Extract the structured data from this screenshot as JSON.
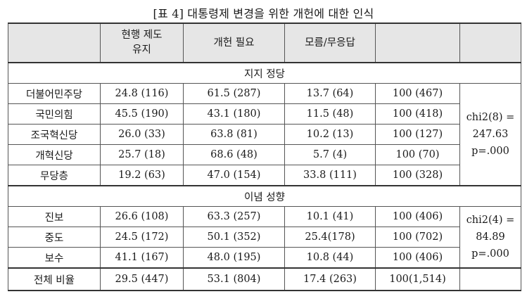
{
  "caption": "[표 4] 대통령제 변경을 위한 개헌에 대한 인식",
  "headers": [
    "",
    "현행 제도\n유지",
    "개헌 필요",
    "모름/무응답",
    "",
    ""
  ],
  "sections": [
    {
      "title": "지지 정당",
      "rows": [
        {
          "label": "더불어민주당",
          "cells": [
            "24.8 (116)",
            "61.5 (287)",
            "13.7 (64)",
            "100 (467)"
          ]
        },
        {
          "label": "국민의힘",
          "cells": [
            "45.5 (190)",
            "43.1 (180)",
            "11.5 (48)",
            "100 (418)"
          ]
        },
        {
          "label": "조국혁신당",
          "cells": [
            "26.0 (33)",
            "63.8 (81)",
            "10.2 (13)",
            "100 (127)"
          ]
        },
        {
          "label": "개혁신당",
          "cells": [
            "25.7 (18)",
            "68.6 (48)",
            "5.7 (4)",
            "100 (70)"
          ]
        },
        {
          "label": "무당층",
          "cells": [
            "19.2 (63)",
            "47.0 (154)",
            "33.8 (111)",
            "100 (328)"
          ]
        }
      ],
      "stat": [
        "chi2(8) =",
        "247.63",
        "p=.000"
      ]
    },
    {
      "title": "이념 성향",
      "rows": [
        {
          "label": "진보",
          "cells": [
            "26.6 (108)",
            "63.3 (257)",
            "10.1 (41)",
            "100 (406)"
          ]
        },
        {
          "label": "중도",
          "cells": [
            "24.5 (172)",
            "50.1 (352)",
            "25.4(178)",
            "100 (702)"
          ]
        },
        {
          "label": "보수",
          "cells": [
            "41.1 (167)",
            "48.0 (195)",
            "10.8 (44)",
            "100 (406)"
          ]
        }
      ],
      "stat": [
        "chi2(4) =",
        "84.89",
        "p=.000"
      ]
    }
  ],
  "total": {
    "label": "전체 비율",
    "cells": [
      "29.5 (447)",
      "53.1 (804)",
      "17.4 (263)",
      "100(1,514)"
    ]
  }
}
